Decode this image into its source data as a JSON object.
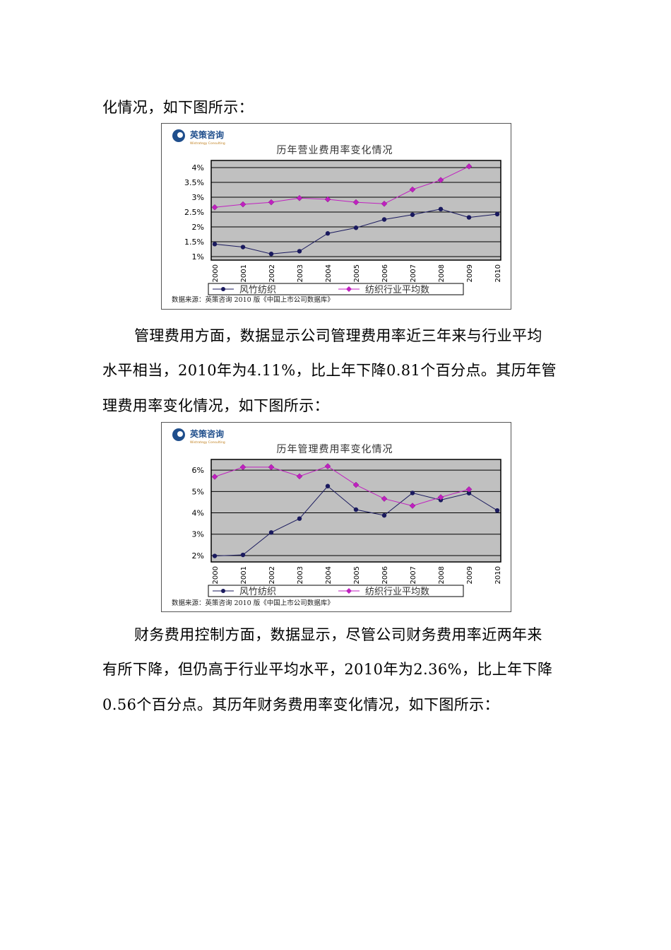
{
  "document": {
    "intro_line": "化情况，如下图所示：",
    "paragraph_mgmt": [
      "管理费用方面，数据显示公司管理费用率近三年来与行业平均",
      "水平相当，2010年为4.11%，比上年下降0.81个百分点。其历年管",
      "理费用率变化情况，如下图所示："
    ],
    "paragraph_fin": [
      "财务费用控制方面，数据显示，尽管公司财务费用率近两年来",
      "有所下降，但仍高于行业平均水平，2010年为2.36%，比上年下降",
      "0.56个百分点。其历年财务费用率变化情况，如下图所示："
    ]
  },
  "logo": {
    "name": "英策咨询",
    "subtitle": "Wistrategy Consulting"
  },
  "colors": {
    "company": "#1a1a5e",
    "industry": "#c020c0",
    "plot_bg": "#c0c0c0",
    "logo": "#1f4e8c"
  },
  "chart_data": [
    {
      "type": "line",
      "title": "历年营业费用率变化情况",
      "categories": [
        "2000",
        "2001",
        "2002",
        "2003",
        "2004",
        "2005",
        "2006",
        "2007",
        "2008",
        "2009",
        "2010"
      ],
      "yticks": [
        "1%",
        "1.5%",
        "2%",
        "2.5%",
        "3%",
        "3.5%",
        "4%"
      ],
      "ytick_values": [
        1,
        1.5,
        2,
        2.5,
        3,
        3.5,
        4
      ],
      "ylim": [
        0.88,
        4.24
      ],
      "grid": true,
      "legend": "bottom",
      "series": [
        {
          "name": "风竹纺织",
          "marker": "circle",
          "values": [
            1.42,
            1.32,
            1.09,
            1.18,
            1.78,
            1.97,
            2.25,
            2.41,
            2.6,
            2.32,
            2.43
          ]
        },
        {
          "name": "纺织行业平均数",
          "marker": "diamond",
          "values": [
            2.66,
            2.76,
            2.83,
            2.97,
            2.93,
            2.83,
            2.78,
            3.26,
            3.58,
            4.04,
            null
          ]
        }
      ],
      "source": "数据来源：英策咨询 2010 版《中国上市公司数据库》"
    },
    {
      "type": "line",
      "title": "历年管理费用率变化情况",
      "categories": [
        "2000",
        "2001",
        "2002",
        "2003",
        "2004",
        "2005",
        "2006",
        "2007",
        "2008",
        "2009",
        "2010"
      ],
      "yticks": [
        "2%",
        "3%",
        "4%",
        "5%",
        "6%"
      ],
      "ytick_values": [
        2,
        3,
        4,
        5,
        6
      ],
      "ylim": [
        1.7,
        6.5
      ],
      "grid": true,
      "legend": "bottom",
      "series": [
        {
          "name": "风竹纺织",
          "marker": "circle",
          "values": [
            1.98,
            2.03,
            3.08,
            3.73,
            5.25,
            4.15,
            3.88,
            4.93,
            4.6,
            4.92,
            4.11
          ]
        },
        {
          "name": "纺织行业平均数",
          "marker": "diamond",
          "values": [
            5.69,
            6.14,
            6.14,
            5.71,
            6.18,
            5.31,
            4.66,
            4.33,
            4.73,
            5.1,
            null
          ]
        }
      ],
      "source": "数据来源：英策咨询 2010 版《中国上市公司数据库》"
    }
  ]
}
